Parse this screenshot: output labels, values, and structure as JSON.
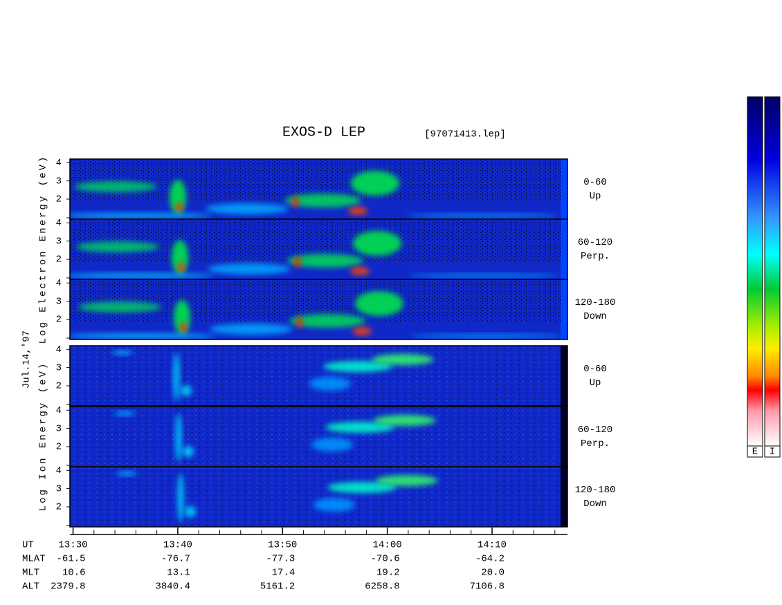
{
  "title": "EXOS-D LEP",
  "file": "[97071413.lep]",
  "date": "Jul.14,'97",
  "groups": [
    {
      "axis_label": "Log Electron Energy (eV)",
      "panels": [
        {
          "angle": "0-60",
          "direction": "Up"
        },
        {
          "angle": "60-120",
          "direction": "Perp."
        },
        {
          "angle": "120-180",
          "direction": "Down"
        }
      ]
    },
    {
      "axis_label": "Log Ion Energy (eV)",
      "panels": [
        {
          "angle": "0-60",
          "direction": "Up"
        },
        {
          "angle": "60-120",
          "direction": "Perp."
        },
        {
          "angle": "120-180",
          "direction": "Down"
        }
      ]
    }
  ],
  "energy_axis": {
    "ylim": [
      0.9,
      4.2
    ],
    "yticks": [
      2,
      3,
      4
    ]
  },
  "time_axis": {
    "ut_label": "UT",
    "xlim": [
      -0.3,
      47.2
    ],
    "minor_step": 2,
    "xticks": [
      {
        "value": 0,
        "label": "13:30"
      },
      {
        "value": 10,
        "label": "13:40"
      },
      {
        "value": 20,
        "label": "13:50"
      },
      {
        "value": 30,
        "label": "14:00"
      },
      {
        "value": 40,
        "label": "14:10"
      }
    ]
  },
  "orbit": {
    "rows": [
      {
        "label": "MLAT",
        "values": [
          "-61.5",
          "-76.7",
          "-77.3",
          "-70.6",
          "-64.2"
        ]
      },
      {
        "label": "MLT",
        "values": [
          "10.6",
          "13.1",
          "17.4",
          "19.2",
          "20.0"
        ]
      },
      {
        "label": "ALT",
        "values": [
          "2379.8",
          "3840.4",
          "5161.2",
          "6258.8",
          "7106.8"
        ]
      }
    ]
  },
  "colorbars": [
    {
      "label": "E"
    },
    {
      "label": "I"
    }
  ]
}
